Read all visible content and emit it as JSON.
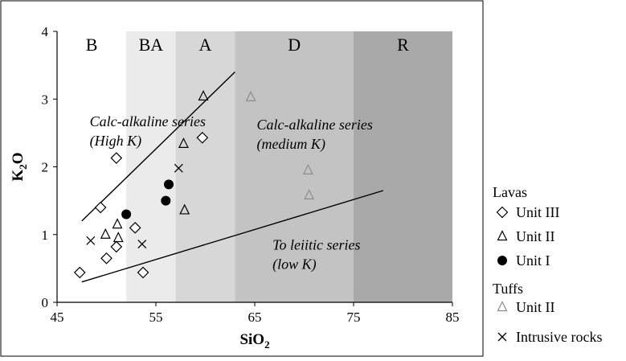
{
  "chart_data": {
    "type": "scatter",
    "xlabel": "SiO",
    "xlabel_sub": "2",
    "ylabel": "K",
    "ylabel_sub": "2",
    "ylabel_tail": "O",
    "xlim": [
      45,
      85
    ],
    "ylim": [
      0,
      4
    ],
    "xticks": [
      "45",
      "55",
      "65",
      "75",
      "85"
    ],
    "yticks": [
      "0",
      "1",
      "2",
      "3",
      "4"
    ],
    "grid": false,
    "zones": [
      {
        "label": "B",
        "x0": 45,
        "x1": 52,
        "color": "#ffffff"
      },
      {
        "label": "BA",
        "x0": 52,
        "x1": 57,
        "color": "#ebebeb"
      },
      {
        "label": "A",
        "x0": 57,
        "x1": 63,
        "color": "#d7d7d7"
      },
      {
        "label": "D",
        "x0": 63,
        "x1": 75,
        "color": "#c3c3c3"
      },
      {
        "label": "R",
        "x0": 75,
        "x1": 85,
        "color": "#a9a9a9"
      }
    ],
    "boundary_lines": [
      {
        "points": [
          [
            47.5,
            1.2
          ],
          [
            63.0,
            3.4
          ]
        ]
      },
      {
        "points": [
          [
            47.5,
            0.3
          ],
          [
            78.0,
            1.65
          ]
        ]
      }
    ],
    "field_labels": [
      {
        "lines": [
          "Calc-alkaline series",
          "(High K)"
        ],
        "x": 48.3,
        "y": 2.6
      },
      {
        "lines": [
          "Calc-alkaline series",
          "(medium K)"
        ],
        "x": 65.2,
        "y": 2.55
      },
      {
        "lines": [
          "To leiitic series",
          "(low K)"
        ],
        "x": 66.8,
        "y": 0.78
      }
    ],
    "series": [
      {
        "name": "Unit III",
        "group": "Lavas",
        "marker": "diamond",
        "points": [
          [
            47.3,
            0.44
          ],
          [
            49.4,
            1.4
          ],
          [
            50.0,
            0.65
          ],
          [
            51.0,
            0.82
          ],
          [
            51.0,
            2.13
          ],
          [
            52.9,
            1.1
          ],
          [
            53.7,
            0.44
          ],
          [
            59.7,
            2.43
          ]
        ]
      },
      {
        "name": "Unit II",
        "group": "Lavas",
        "marker": "triangle",
        "points": [
          [
            49.9,
            1.0
          ],
          [
            51.1,
            1.15
          ],
          [
            51.2,
            0.95
          ],
          [
            57.8,
            2.34
          ],
          [
            57.9,
            1.36
          ],
          [
            59.8,
            3.04
          ]
        ]
      },
      {
        "name": "Unit I",
        "group": "Lavas",
        "marker": "circle",
        "points": [
          [
            52.0,
            1.3
          ],
          [
            56.0,
            1.5
          ],
          [
            56.3,
            1.74
          ]
        ]
      },
      {
        "name": "Unit II",
        "group": "Tuffs",
        "marker": "triangle-gray",
        "points": [
          [
            64.6,
            3.03
          ],
          [
            70.4,
            1.95
          ],
          [
            70.5,
            1.58
          ]
        ]
      },
      {
        "name": "Intrusive rocks",
        "marker": "cross",
        "points": [
          [
            48.4,
            0.91
          ],
          [
            53.6,
            0.86
          ],
          [
            57.3,
            1.98
          ]
        ]
      }
    ]
  },
  "legend": {
    "lavas_heading": "Lavas",
    "tuffs_heading": "Tuffs",
    "entries": [
      {
        "marker": "diamond",
        "label": "Unit III"
      },
      {
        "marker": "triangle",
        "label": "Unit II"
      },
      {
        "marker": "circle",
        "label": "Unit I"
      },
      {
        "marker": "triangle-gray",
        "label": "Unit II"
      },
      {
        "marker": "cross",
        "label": "Intrusive rocks"
      }
    ],
    "colors": {
      "gray_marker": "#8c8c8c",
      "ink": "#000000"
    }
  }
}
